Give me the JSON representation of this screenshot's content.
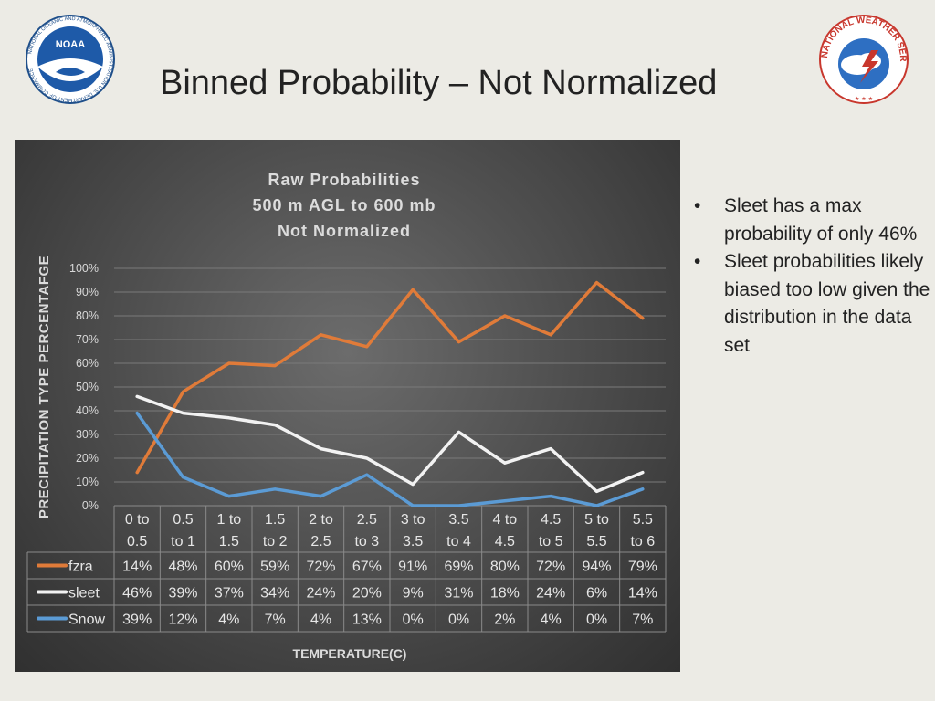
{
  "slide": {
    "title": "Binned Probability – Not Normalized",
    "bullets": [
      "Sleet has a max probability of only 46%",
      "Sleet probabilities likely biased too low given the distribution in the data set"
    ],
    "noaa_logo_text": "NATIONAL OCEANIC AND ATMOSPHERIC ADMINISTRATION U.S. DEPARTMENT OF COMMERCE",
    "noaa_logo_center": "NOAA",
    "nws_logo_text": "NATIONAL WEATHER SERVICE"
  },
  "chart_data": {
    "type": "line",
    "title_lines": [
      "Raw Probabilities",
      "500 m AGL to 600 mb",
      "Not Normalized"
    ],
    "xlabel": "TEMPERATURE(C)",
    "ylabel": "PRECIPITATION TYPE PERCENTAFGE",
    "ylim": [
      0,
      100
    ],
    "yticks": [
      "0%",
      "10%",
      "20%",
      "30%",
      "40%",
      "50%",
      "60%",
      "70%",
      "80%",
      "90%",
      "100%"
    ],
    "categories": [
      [
        "0 to",
        "0.5"
      ],
      [
        "0.5",
        "to 1"
      ],
      [
        "1 to",
        "1.5"
      ],
      [
        "1.5",
        "to 2"
      ],
      [
        "2 to",
        "2.5"
      ],
      [
        "2.5",
        "to 3"
      ],
      [
        "3 to",
        "3.5"
      ],
      [
        "3.5",
        "to 4"
      ],
      [
        "4 to",
        "4.5"
      ],
      [
        "4.5",
        "to 5"
      ],
      [
        "5 to",
        "5.5"
      ],
      [
        "5.5",
        "to 6"
      ]
    ],
    "grid": true,
    "legend": "data-table",
    "series": [
      {
        "name": "fzra",
        "color": "#e07b39",
        "values": [
          14,
          48,
          60,
          59,
          72,
          67,
          91,
          69,
          80,
          72,
          94,
          79
        ],
        "labels": [
          "14%",
          "48%",
          "60%",
          "59%",
          "72%",
          "67%",
          "91%",
          "69%",
          "80%",
          "72%",
          "94%",
          "79%"
        ]
      },
      {
        "name": "sleet",
        "color": "#f2f2f2",
        "values": [
          46,
          39,
          37,
          34,
          24,
          20,
          9,
          31,
          18,
          24,
          6,
          14
        ],
        "labels": [
          "46%",
          "39%",
          "37%",
          "34%",
          "24%",
          "20%",
          "9%",
          "31%",
          "18%",
          "24%",
          "6%",
          "14%"
        ]
      },
      {
        "name": "Snow",
        "color": "#5b9bd5",
        "values": [
          39,
          12,
          4,
          7,
          4,
          13,
          0,
          0,
          2,
          4,
          0,
          7
        ],
        "labels": [
          "39%",
          "12%",
          "4%",
          "7%",
          "4%",
          "13%",
          "0%",
          "0%",
          "2%",
          "4%",
          "0%",
          "7%"
        ]
      }
    ]
  }
}
